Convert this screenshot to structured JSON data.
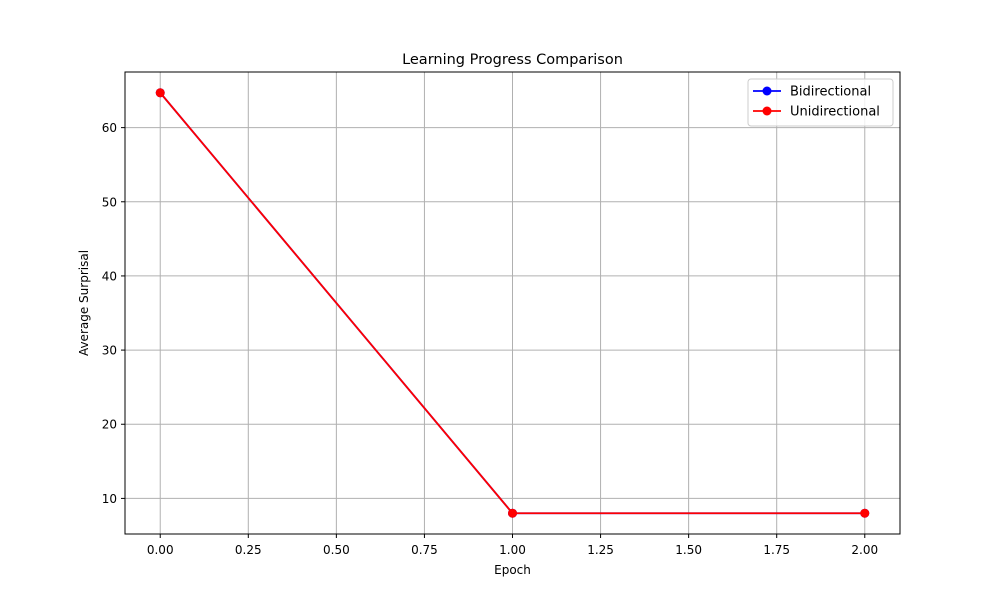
{
  "chart_data": {
    "type": "line",
    "title": "Learning Progress Comparison",
    "xlabel": "Epoch",
    "ylabel": "Average Surprisal",
    "x": [
      0,
      1,
      2
    ],
    "series": [
      {
        "name": "Bidirectional",
        "color": "#0000ff",
        "marker": "circle",
        "values": [
          64.7,
          8.0,
          8.0
        ]
      },
      {
        "name": "Unidirectional",
        "color": "#ff0000",
        "marker": "circle",
        "values": [
          64.7,
          8.0,
          8.0
        ]
      }
    ],
    "xlim": [
      -0.1,
      2.1
    ],
    "ylim": [
      5.2,
      67.5
    ],
    "xticks": [
      0,
      0.25,
      0.5,
      0.75,
      1,
      1.25,
      1.5,
      1.75,
      2
    ],
    "xtick_labels": [
      "0.00",
      "0.25",
      "0.50",
      "0.75",
      "1.00",
      "1.25",
      "1.50",
      "1.75",
      "2.00"
    ],
    "yticks": [
      10,
      20,
      30,
      40,
      50,
      60
    ],
    "ytick_labels": [
      "10",
      "20",
      "30",
      "40",
      "50",
      "60"
    ],
    "grid": true,
    "legend_position": "top-right",
    "grid_color": "#b0b0b0"
  }
}
